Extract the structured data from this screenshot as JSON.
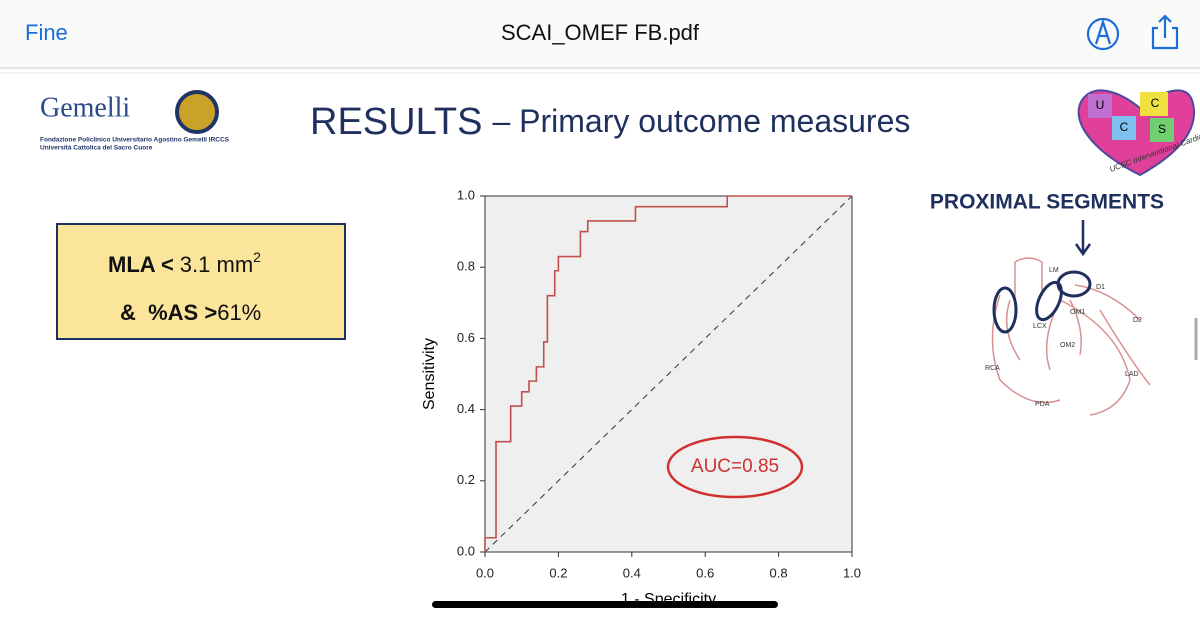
{
  "toolbar": {
    "back": "Fine",
    "title": "SCAI_OMEF FB.pdf"
  },
  "slide": {
    "logo": {
      "name": "Gemelli",
      "line1": "Fondazione Policlinico Universitario Agostino Gemelli IRCCS",
      "line2": "Università Cattolica del Sacro Cuore"
    },
    "title": "RESULTS",
    "subtitle": "– Primary outcome measures",
    "criteria": {
      "line1_bold": "MLA <",
      "line1_rest": "3.1 mm",
      "line1_sup": "2",
      "line2_bold": "&  %AS >",
      "line2_rest": "61%"
    },
    "diagram": {
      "title": "PROXIMAL SEGMENTS",
      "labels": [
        "LM",
        "D1",
        "D2",
        "LCX",
        "OM1",
        "OM2",
        "RCA",
        "LAD",
        "PDA"
      ]
    },
    "badge": {
      "letters": [
        "U",
        "C",
        "C",
        "S"
      ],
      "text": "UCSC Interventional Cardiology"
    }
  },
  "chart_data": {
    "type": "line",
    "color": "#c0504d",
    "x": [
      0,
      0,
      0.03,
      0.03,
      0.07,
      0.07,
      0.1,
      0.1,
      0.12,
      0.12,
      0.14,
      0.14,
      0.16,
      0.16,
      0.17,
      0.17,
      0.19,
      0.19,
      0.2,
      0.2,
      0.26,
      0.26,
      0.28,
      0.28,
      0.41,
      0.41,
      0.66,
      0.66,
      1
    ],
    "values": [
      0,
      0.04,
      0.04,
      0.31,
      0.31,
      0.41,
      0.41,
      0.45,
      0.45,
      0.48,
      0.48,
      0.52,
      0.52,
      0.59,
      0.59,
      0.72,
      0.72,
      0.79,
      0.79,
      0.83,
      0.83,
      0.9,
      0.9,
      0.93,
      0.93,
      0.97,
      0.97,
      1,
      1
    ],
    "xlabel": "1 - Specificity",
    "ylabel": "Sensitivity",
    "xlim": [
      0,
      1
    ],
    "ylim": [
      0,
      1
    ],
    "xticks": [
      {
        "value": 0,
        "label": "0.0"
      },
      0.2,
      0.4,
      0.6,
      0.8,
      {
        "value": 1,
        "label": "1.0"
      }
    ],
    "yticks": [
      {
        "value": 0,
        "label": "0.0"
      },
      0.2,
      0.4,
      0.6,
      0.8,
      {
        "value": 1,
        "label": "1.0"
      }
    ],
    "annotation": "AUC=0.85"
  }
}
